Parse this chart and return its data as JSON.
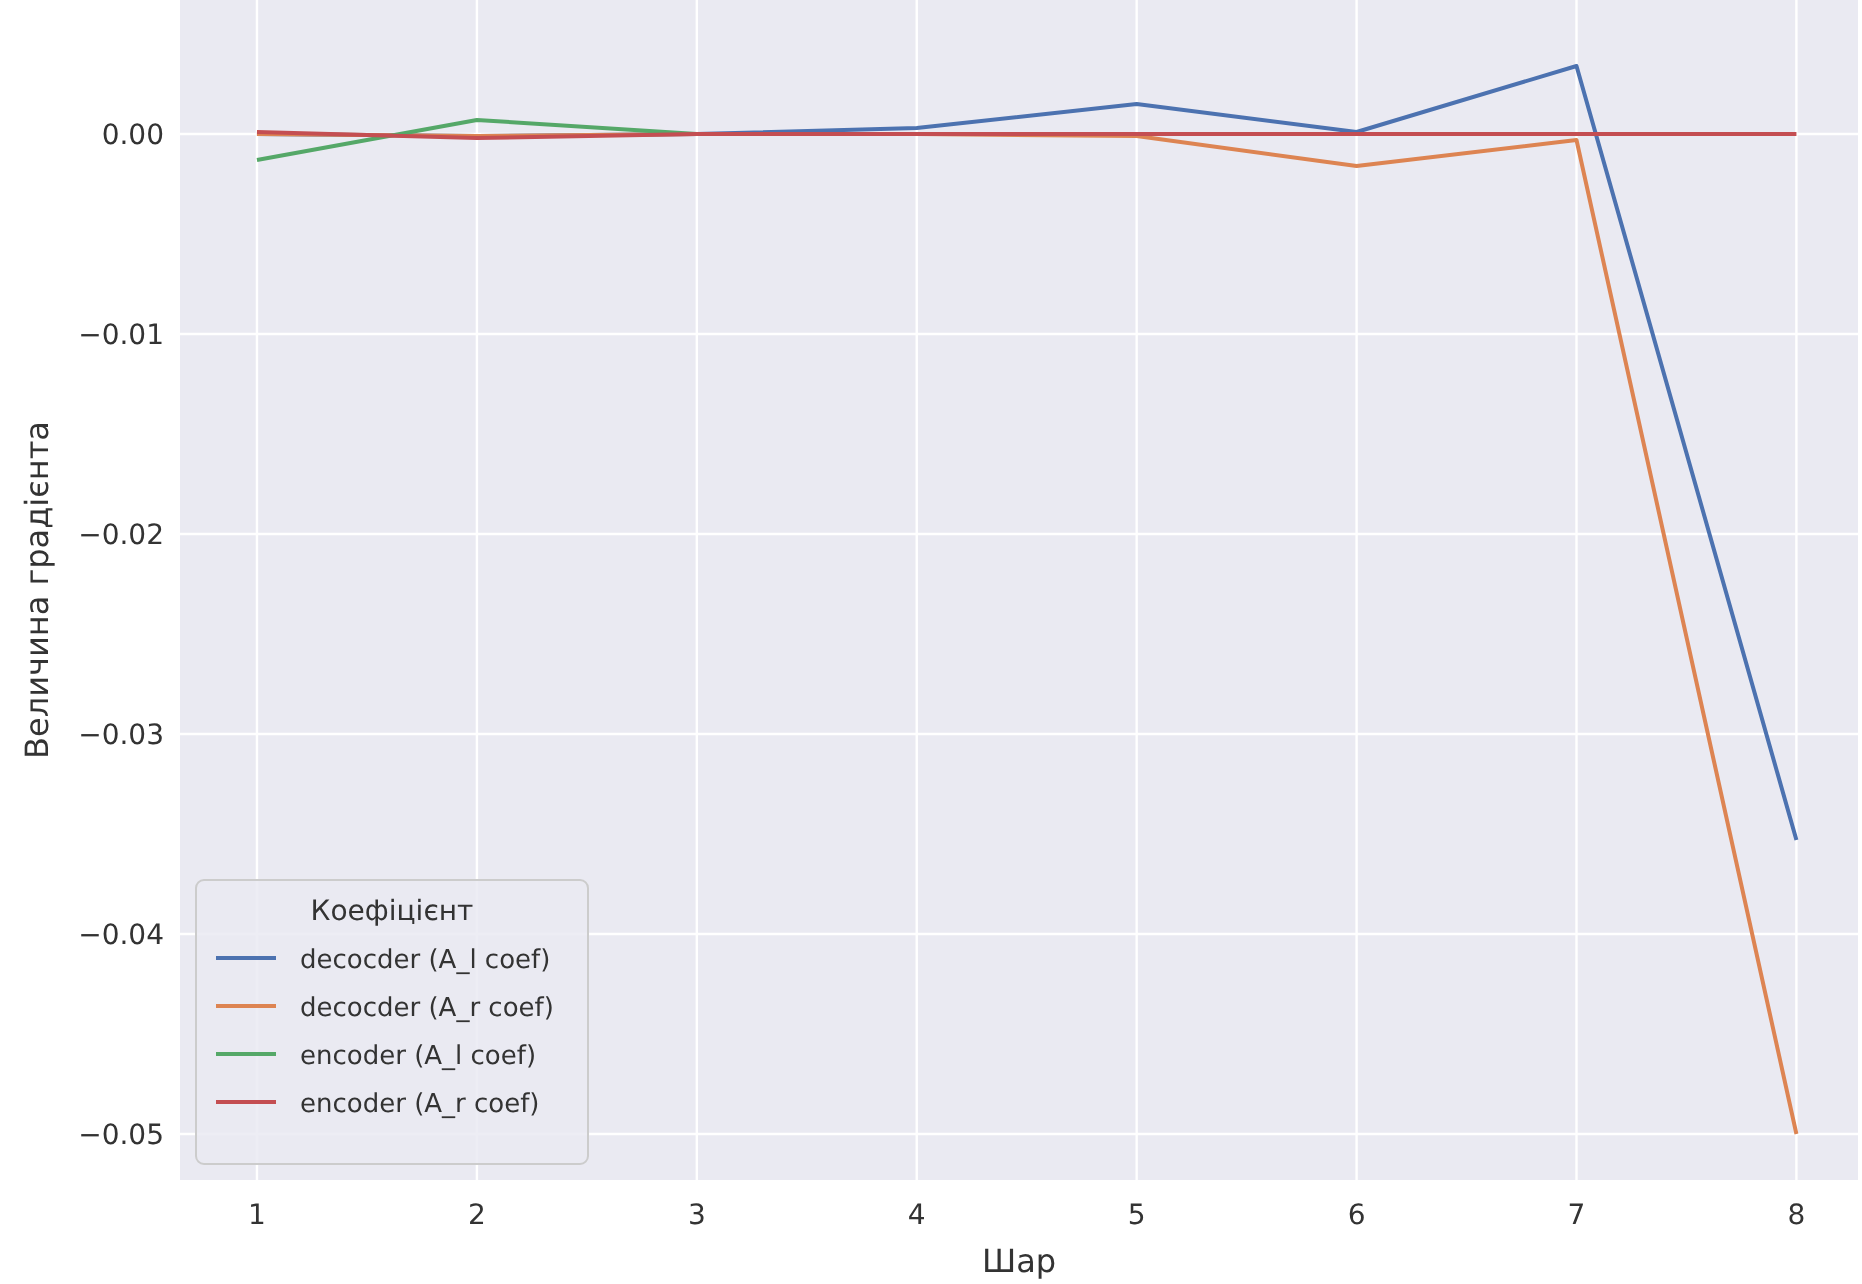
{
  "chart_data": {
    "type": "line",
    "xlabel": "Шар",
    "ylabel": "Величина градієнта",
    "legend_title": "Коефіцієнт",
    "x": [
      1,
      2,
      3,
      4,
      5,
      6,
      7,
      8
    ],
    "xlim": [
      0.65,
      8.28
    ],
    "xticks": [
      1,
      2,
      3,
      4,
      5,
      6,
      7,
      8
    ],
    "ylim": [
      -0.0523,
      0.0067
    ],
    "yticks": [
      {
        "value": 0,
        "label": "0.00"
      },
      {
        "value": -0.01,
        "label": "−0.01"
      },
      {
        "value": -0.02,
        "label": "−0.02"
      },
      {
        "value": -0.03,
        "label": "−0.03"
      },
      {
        "value": -0.04,
        "label": "−0.04"
      },
      {
        "value": -0.05,
        "label": "−0.05"
      }
    ],
    "grid": true,
    "legend": "bottom left",
    "series": [
      {
        "name": "decocder (A_l coef)",
        "color": "#4c72b0",
        "values": [
          0,
          -0.0001,
          0,
          0.0003,
          0.0015,
          0.0001,
          0.0034,
          -0.0353
        ]
      },
      {
        "name": "decocder (A_r coef)",
        "color": "#dd8452",
        "values": [
          0,
          -0.0001,
          0,
          0,
          -0.0001,
          -0.0016,
          -0.0003,
          -0.05
        ]
      },
      {
        "name": "encoder (A_l coef)",
        "color": "#55a868",
        "values": [
          -0.0013,
          0.0007,
          0,
          null,
          null,
          null,
          null,
          null
        ]
      },
      {
        "name": "encoder (A_r coef)",
        "color": "#c44e52",
        "values": [
          0.0001,
          -0.0002,
          0,
          0,
          0,
          0,
          0,
          0
        ]
      }
    ]
  }
}
